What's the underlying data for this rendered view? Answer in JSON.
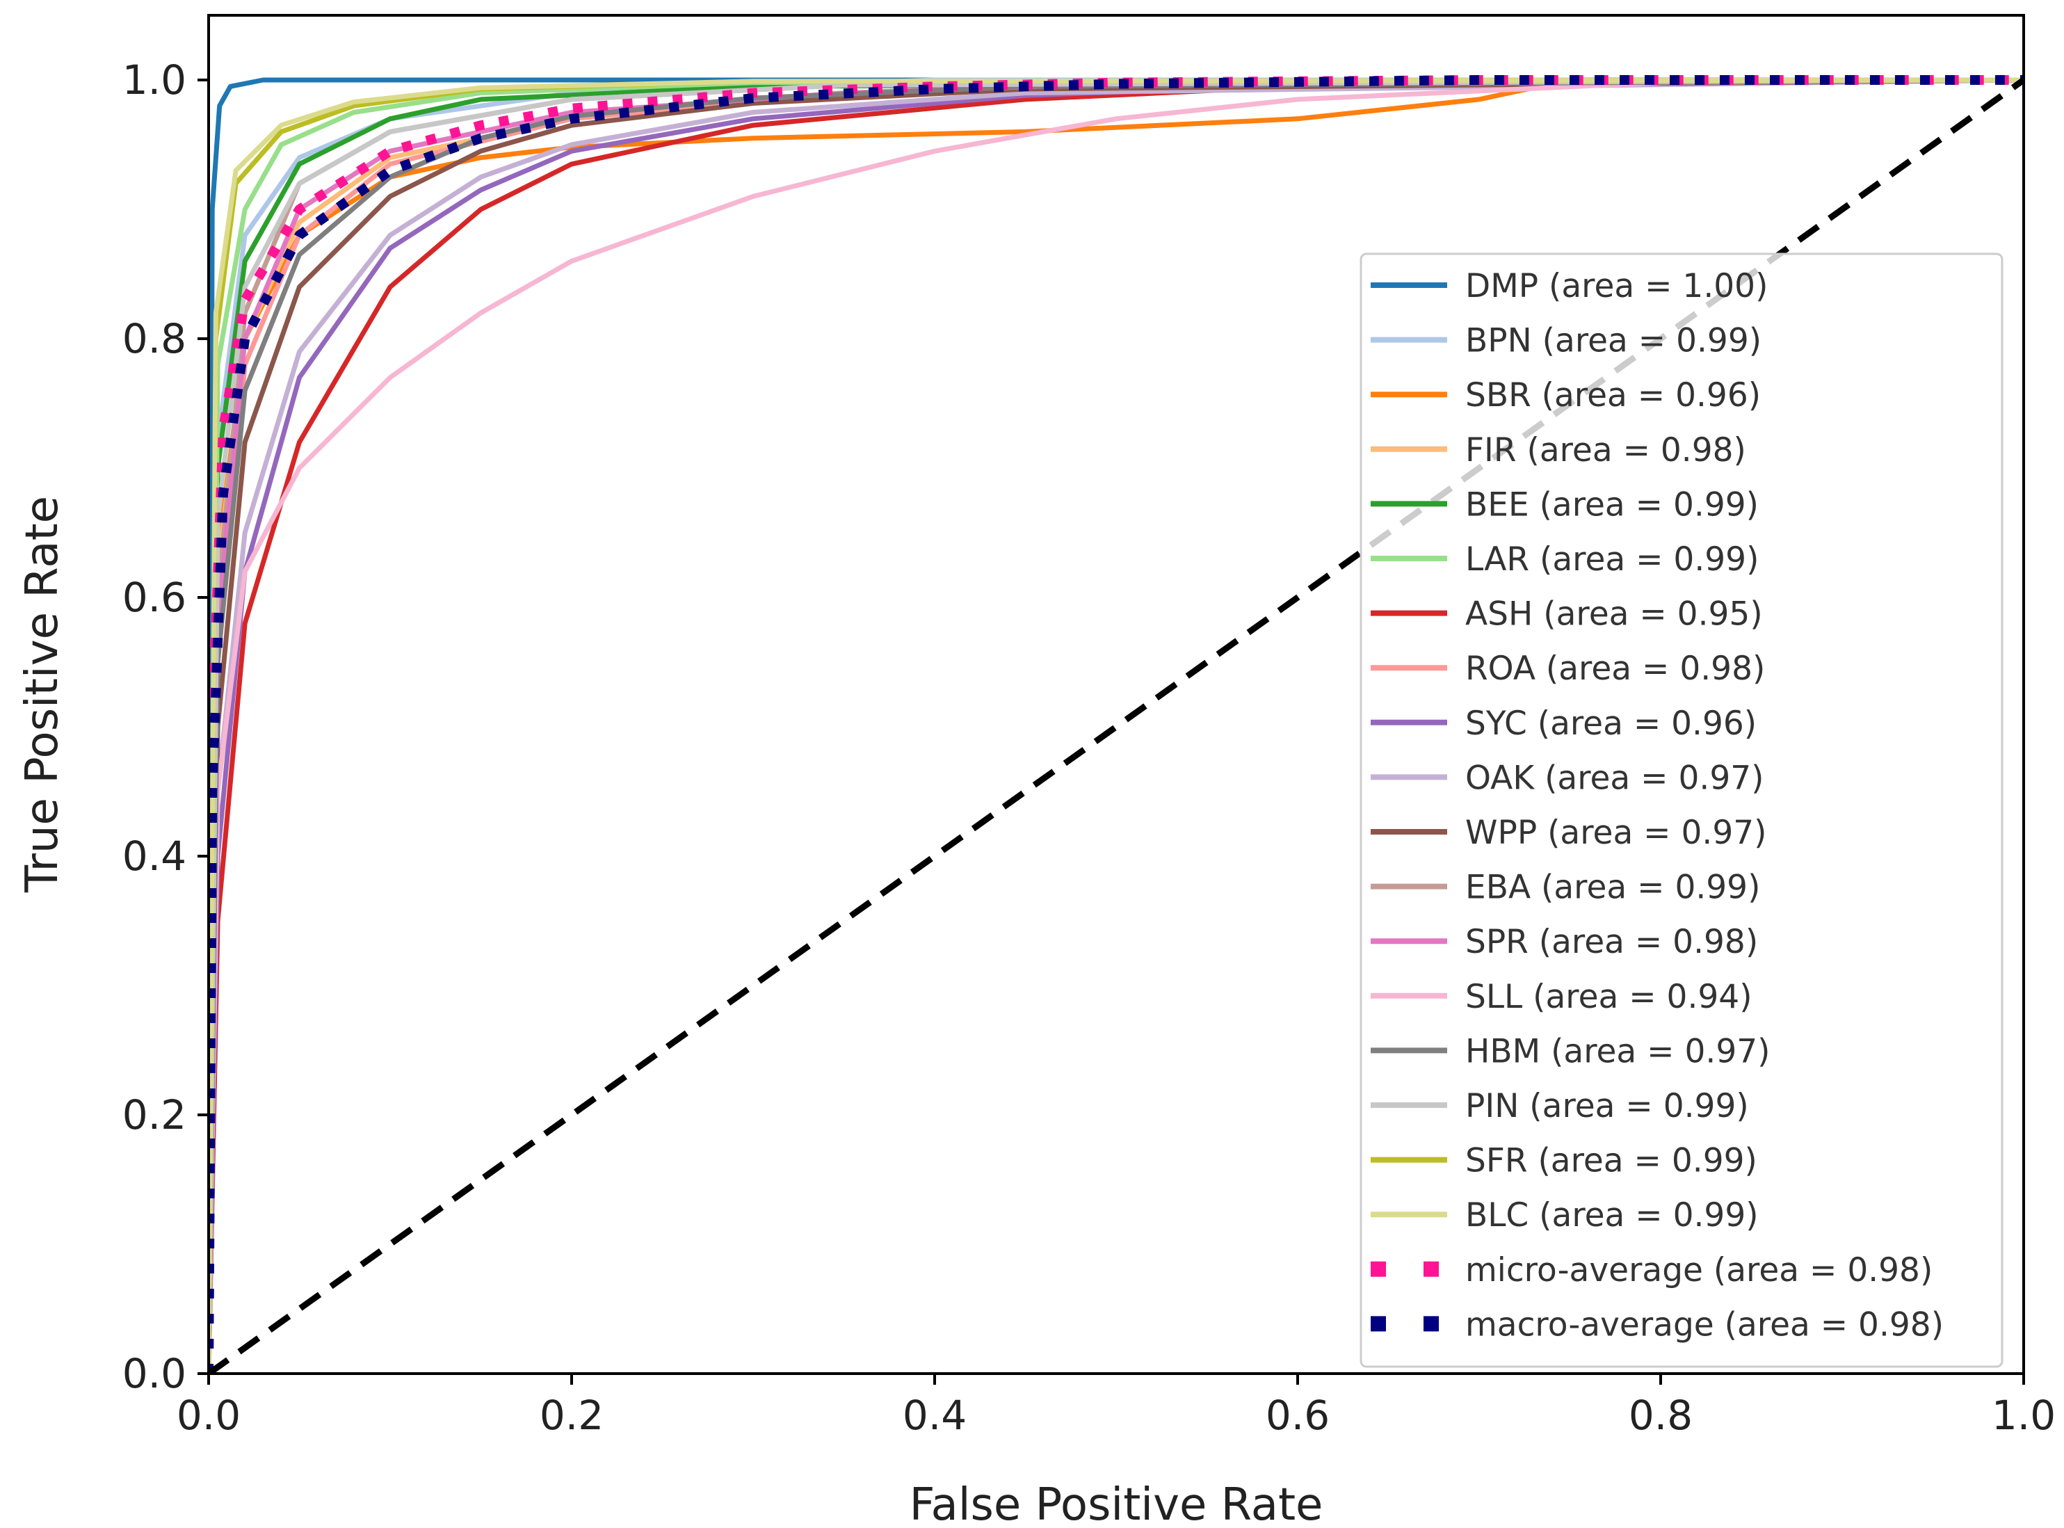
{
  "chart_data": {
    "type": "line",
    "title": "",
    "xlabel": "False Positive Rate",
    "ylabel": "True Positive Rate",
    "xlim": [
      0.0,
      1.0
    ],
    "ylim": [
      0.0,
      1.05
    ],
    "xticks": [
      "0.0",
      "0.2",
      "0.4",
      "0.6",
      "0.8",
      "1.0"
    ],
    "yticks": [
      "0.0",
      "0.2",
      "0.4",
      "0.6",
      "0.8",
      "1.0"
    ],
    "legend_position": "center-right",
    "grid": false,
    "diagonal": {
      "x": [
        0.0,
        1.0
      ],
      "y": [
        0.0,
        1.0
      ],
      "color": "#000000",
      "style": "dashed"
    },
    "series": [
      {
        "name": "DMP",
        "label": "DMP (area = 1.00)",
        "color": "#1f77b4",
        "style": "solid",
        "x": [
          0,
          0.002,
          0.006,
          0.012,
          0.03,
          0.1,
          1.0
        ],
        "y": [
          0,
          0.9,
          0.98,
          0.995,
          1.0,
          1.0,
          1.0
        ]
      },
      {
        "name": "BPN",
        "label": "BPN (area = 0.99)",
        "color": "#aec7e8",
        "style": "solid",
        "x": [
          0,
          0.005,
          0.02,
          0.05,
          0.1,
          0.2,
          0.4,
          1.0
        ],
        "y": [
          0,
          0.72,
          0.88,
          0.94,
          0.97,
          0.99,
          1.0,
          1.0
        ]
      },
      {
        "name": "SBR",
        "label": "SBR (area = 0.96)",
        "color": "#ff7f0e",
        "style": "solid",
        "x": [
          0,
          0.005,
          0.02,
          0.05,
          0.1,
          0.15,
          0.2,
          0.3,
          0.45,
          0.6,
          0.7,
          0.75,
          1.0
        ],
        "y": [
          0,
          0.63,
          0.8,
          0.88,
          0.925,
          0.94,
          0.948,
          0.955,
          0.96,
          0.97,
          0.985,
          1.0,
          1.0
        ]
      },
      {
        "name": "FIR",
        "label": "FIR (area = 0.98)",
        "color": "#ffbb78",
        "style": "solid",
        "x": [
          0,
          0.005,
          0.02,
          0.05,
          0.1,
          0.2,
          0.3,
          0.5,
          1.0
        ],
        "y": [
          0,
          0.62,
          0.8,
          0.89,
          0.94,
          0.97,
          0.985,
          0.995,
          1.0
        ]
      },
      {
        "name": "BEE",
        "label": "BEE (area = 0.99)",
        "color": "#2ca02c",
        "style": "solid",
        "x": [
          0,
          0.005,
          0.02,
          0.05,
          0.1,
          0.15,
          0.3,
          1.0
        ],
        "y": [
          0,
          0.7,
          0.86,
          0.935,
          0.97,
          0.985,
          0.995,
          1.0
        ]
      },
      {
        "name": "LAR",
        "label": "LAR (area = 0.99)",
        "color": "#98df8a",
        "style": "solid",
        "x": [
          0,
          0.005,
          0.02,
          0.04,
          0.08,
          0.15,
          0.3,
          1.0
        ],
        "y": [
          0,
          0.78,
          0.9,
          0.95,
          0.975,
          0.99,
          0.998,
          1.0
        ]
      },
      {
        "name": "ASH",
        "label": "ASH (area = 0.95)",
        "color": "#d62728",
        "style": "solid",
        "x": [
          0,
          0.005,
          0.02,
          0.05,
          0.1,
          0.15,
          0.2,
          0.3,
          0.45,
          0.6,
          1.0
        ],
        "y": [
          0,
          0.35,
          0.58,
          0.72,
          0.84,
          0.9,
          0.935,
          0.965,
          0.985,
          0.995,
          1.0
        ]
      },
      {
        "name": "ROA",
        "label": "ROA (area = 0.98)",
        "color": "#ff9896",
        "style": "solid",
        "x": [
          0,
          0.005,
          0.02,
          0.05,
          0.1,
          0.2,
          0.35,
          0.5,
          1.0
        ],
        "y": [
          0,
          0.55,
          0.78,
          0.88,
          0.935,
          0.97,
          0.99,
          0.997,
          1.0
        ]
      },
      {
        "name": "SYC",
        "label": "SYC (area = 0.96)",
        "color": "#9467bd",
        "style": "solid",
        "x": [
          0,
          0.005,
          0.02,
          0.05,
          0.1,
          0.15,
          0.2,
          0.3,
          0.45,
          0.6,
          1.0
        ],
        "y": [
          0,
          0.4,
          0.62,
          0.77,
          0.87,
          0.915,
          0.945,
          0.97,
          0.988,
          0.996,
          1.0
        ]
      },
      {
        "name": "OAK",
        "label": "OAK (area = 0.97)",
        "color": "#c5b0d5",
        "style": "solid",
        "x": [
          0,
          0.005,
          0.02,
          0.05,
          0.1,
          0.15,
          0.2,
          0.3,
          0.45,
          1.0
        ],
        "y": [
          0,
          0.45,
          0.65,
          0.79,
          0.88,
          0.925,
          0.95,
          0.975,
          0.99,
          1.0
        ]
      },
      {
        "name": "WPP",
        "label": "WPP (area = 0.97)",
        "color": "#8c564b",
        "style": "solid",
        "x": [
          0,
          0.005,
          0.02,
          0.05,
          0.1,
          0.15,
          0.2,
          0.3,
          0.45,
          1.0
        ],
        "y": [
          0,
          0.5,
          0.72,
          0.84,
          0.91,
          0.945,
          0.965,
          0.982,
          0.993,
          1.0
        ]
      },
      {
        "name": "EBA",
        "label": "EBA (area = 0.99)",
        "color": "#c49c94",
        "style": "solid",
        "x": [
          0,
          0.005,
          0.02,
          0.05,
          0.1,
          0.2,
          0.35,
          1.0
        ],
        "y": [
          0,
          0.6,
          0.82,
          0.92,
          0.96,
          0.985,
          0.996,
          1.0
        ]
      },
      {
        "name": "SPR",
        "label": "SPR (area = 0.98)",
        "color": "#e377c2",
        "style": "solid",
        "x": [
          0,
          0.005,
          0.02,
          0.05,
          0.1,
          0.2,
          0.35,
          0.5,
          1.0
        ],
        "y": [
          0,
          0.58,
          0.8,
          0.9,
          0.945,
          0.975,
          0.99,
          0.997,
          1.0
        ]
      },
      {
        "name": "SLL",
        "label": "SLL (area = 0.94)",
        "color": "#f7b6d2",
        "style": "solid",
        "x": [
          0,
          0.005,
          0.02,
          0.05,
          0.1,
          0.15,
          0.2,
          0.3,
          0.4,
          0.5,
          0.6,
          0.8,
          1.0
        ],
        "y": [
          0,
          0.45,
          0.62,
          0.7,
          0.77,
          0.82,
          0.86,
          0.91,
          0.945,
          0.97,
          0.985,
          0.998,
          1.0
        ]
      },
      {
        "name": "HBM",
        "label": "HBM (area = 0.97)",
        "color": "#7f7f7f",
        "style": "solid",
        "x": [
          0,
          0.005,
          0.02,
          0.05,
          0.1,
          0.15,
          0.2,
          0.3,
          0.45,
          1.0
        ],
        "y": [
          0,
          0.55,
          0.76,
          0.865,
          0.925,
          0.955,
          0.972,
          0.986,
          0.995,
          1.0
        ]
      },
      {
        "name": "PIN",
        "label": "PIN (area = 0.99)",
        "color": "#c7c7c7",
        "style": "solid",
        "x": [
          0,
          0.005,
          0.02,
          0.05,
          0.1,
          0.2,
          0.35,
          1.0
        ],
        "y": [
          0,
          0.66,
          0.84,
          0.92,
          0.96,
          0.985,
          0.996,
          1.0
        ]
      },
      {
        "name": "SFR",
        "label": "SFR (area = 0.99)",
        "color": "#bcbd22",
        "style": "solid",
        "x": [
          0,
          0.004,
          0.015,
          0.04,
          0.08,
          0.15,
          0.3,
          1.0
        ],
        "y": [
          0,
          0.8,
          0.92,
          0.96,
          0.98,
          0.993,
          0.999,
          1.0
        ]
      },
      {
        "name": "BLC",
        "label": "BLC (area = 0.99)",
        "color": "#dbdb8d",
        "style": "solid",
        "x": [
          0,
          0.004,
          0.015,
          0.04,
          0.08,
          0.15,
          0.3,
          1.0
        ],
        "y": [
          0,
          0.82,
          0.93,
          0.965,
          0.983,
          0.994,
          0.999,
          1.0
        ]
      },
      {
        "name": "micro-average",
        "label": "micro-average (area = 0.98)",
        "color": "#ff1493",
        "style": "dotted",
        "x": [
          0,
          0.002,
          0.008,
          0.02,
          0.05,
          0.1,
          0.15,
          0.2,
          0.3,
          0.4,
          0.5,
          0.7,
          1.0
        ],
        "y": [
          0,
          0.5,
          0.73,
          0.83,
          0.9,
          0.945,
          0.965,
          0.978,
          0.99,
          0.995,
          0.998,
          1.0,
          1.0
        ]
      },
      {
        "name": "macro-average",
        "label": "macro-average (area = 0.98)",
        "color": "#000080",
        "style": "dotted",
        "x": [
          0,
          0.002,
          0.008,
          0.02,
          0.05,
          0.1,
          0.15,
          0.2,
          0.3,
          0.4,
          0.5,
          0.7,
          1.0
        ],
        "y": [
          0,
          0.45,
          0.68,
          0.8,
          0.88,
          0.93,
          0.955,
          0.97,
          0.986,
          0.993,
          0.997,
          1.0,
          1.0
        ]
      }
    ]
  }
}
